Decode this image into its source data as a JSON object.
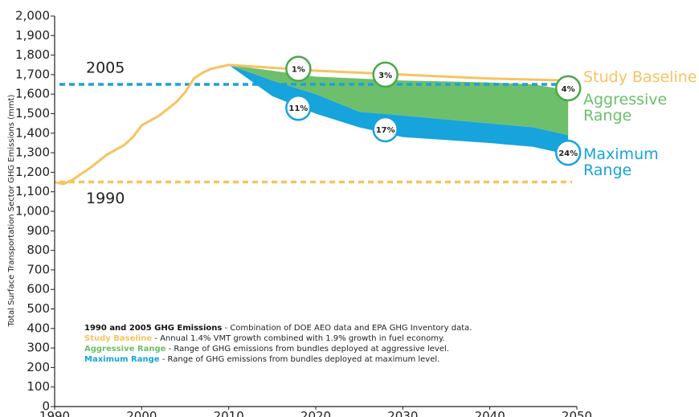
{
  "chart_data": {
    "type": "line",
    "y_label": "Total Surface Transportation Sector GHG Emissions (mmt)",
    "xlim": [
      1990,
      2050
    ],
    "xticks": [
      1990,
      2000,
      2010,
      2020,
      2030,
      2040,
      2050
    ],
    "ylim": [
      0,
      2000
    ],
    "yticks": [
      0,
      100,
      200,
      300,
      400,
      500,
      600,
      700,
      800,
      900,
      {
        "value": 1000,
        "label": "1,000"
      },
      {
        "value": 1100,
        "label": "1,100"
      },
      {
        "value": 1200,
        "label": "1,200"
      },
      {
        "value": 1300,
        "label": "1,300"
      },
      {
        "value": 1400,
        "label": "1,400"
      },
      {
        "value": 1500,
        "label": "1,500"
      },
      {
        "value": 1600,
        "label": "1,600"
      },
      {
        "value": 1700,
        "label": "1,700"
      },
      {
        "value": 1800,
        "label": "1,800"
      },
      {
        "value": 1900,
        "label": "1,900"
      },
      {
        "value": 2000,
        "label": "2,000"
      }
    ],
    "series": [
      {
        "name": "Aggressive Range",
        "type": "range",
        "color": "#6dbf6b",
        "x": [
          2010,
          2015,
          2020,
          2025,
          2030,
          2035,
          2040,
          2045,
          2049
        ],
        "lower": [
          1750,
          1670,
          1600,
          1510,
          1490,
          1470,
          1450,
          1430,
          1390
        ],
        "upper": [
          1750,
          1720,
          1690,
          1680,
          1670,
          1665,
          1660,
          1650,
          1620
        ]
      },
      {
        "name": "Maximum Range",
        "type": "range",
        "color": "#17a3dc",
        "x": [
          2010,
          2015,
          2020,
          2025,
          2030,
          2035,
          2040,
          2045,
          2049
        ],
        "lower": [
          1750,
          1590,
          1500,
          1430,
          1380,
          1365,
          1350,
          1330,
          1290
        ],
        "upper": [
          1750,
          1670,
          1600,
          1510,
          1490,
          1470,
          1450,
          1430,
          1390
        ]
      },
      {
        "name": "Study Baseline",
        "type": "line",
        "color": "#f7c35f",
        "x": [
          1990,
          1991,
          1992,
          1994,
          1996,
          1998,
          1999,
          2000,
          2002,
          2004,
          2005,
          2006,
          2007,
          2008,
          2010,
          2020,
          2030,
          2040,
          2049
        ],
        "values": [
          1150,
          1140,
          1160,
          1220,
          1290,
          1340,
          1380,
          1440,
          1490,
          1560,
          1610,
          1680,
          1710,
          1730,
          1750,
          1720,
          1700,
          1680,
          1670
        ]
      }
    ],
    "reference_lines": [
      {
        "label": "2005",
        "value": 1650,
        "color": "#1fa0db"
      },
      {
        "label": "1990",
        "value": 1150,
        "color": "#f7c35f"
      }
    ],
    "annotations": [
      {
        "text": "1%",
        "x": 2018,
        "y": 1730,
        "color": "#4aa84a"
      },
      {
        "text": "3%",
        "x": 2028,
        "y": 1700,
        "color": "#4aa84a"
      },
      {
        "text": "4%",
        "x": 2049,
        "y": 1630,
        "color": "#4aa84a"
      },
      {
        "text": "11%",
        "x": 2018,
        "y": 1530,
        "color": "#17a3dc"
      },
      {
        "text": "17%",
        "x": 2028,
        "y": 1420,
        "color": "#17a3dc"
      },
      {
        "text": "24%",
        "x": 2049,
        "y": 1300,
        "color": "#17a3dc"
      }
    ],
    "notes": [
      {
        "term": "1990 and 2005 GHG Emissions",
        "text": " - Combination of DOE AEO data and EPA GHG Inventory data.",
        "color": "#111111"
      },
      {
        "term": "Study Baseline",
        "text": " - Annual 1.4% VMT growth combined with 1.9% growth in fuel economy.",
        "color": "#f7c35f"
      },
      {
        "term": "Aggressive Range",
        "text": " - Range of GHG emissions from bundles deployed at aggressive level.",
        "color": "#6dbf6b"
      },
      {
        "term": "Maximum Range",
        "text": " - Range of GHG emissions from bundles deployed at maximum level.",
        "color": "#17a3dc"
      }
    ]
  }
}
